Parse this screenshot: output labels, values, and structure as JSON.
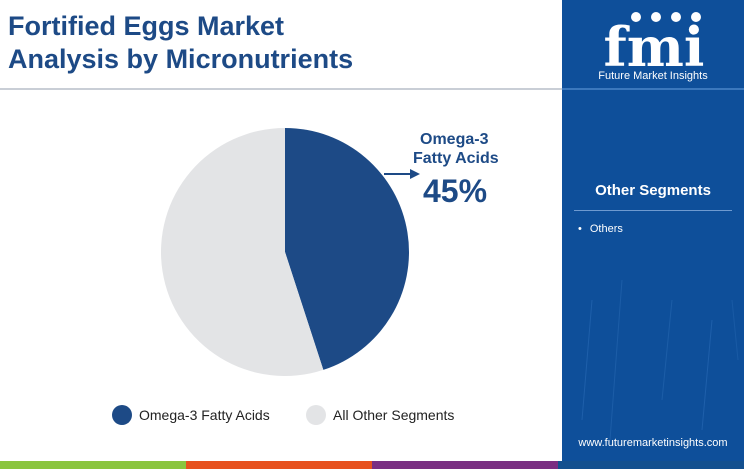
{
  "header": {
    "title_line1": "Fortified Eggs Market",
    "title_line2": "Analysis by Micronutrients"
  },
  "chart_data": {
    "type": "pie",
    "categories": [
      "Omega-3 Fatty Acids",
      "All Other Segments"
    ],
    "values": [
      45,
      55
    ],
    "unit": "%",
    "colors": [
      "#1d4a86",
      "#e3e4e6"
    ],
    "start_angle": "12 o'clock, clockwise",
    "legend_position": "bottom",
    "callout": {
      "label_line1": "Omega-3",
      "label_line2": "Fatty Acids",
      "value": "45%"
    }
  },
  "sidebar": {
    "logo_text": "fmi",
    "logo_caption": "Future Market Insights",
    "segments_title": "Other Segments",
    "segments": [
      "Others"
    ],
    "website": "www.futuremarketinsights.com",
    "background": "#0e4f9a"
  },
  "footer": {
    "colors": [
      "#8ac53f",
      "#e7511e",
      "#7a2e82",
      "#13508f"
    ]
  }
}
